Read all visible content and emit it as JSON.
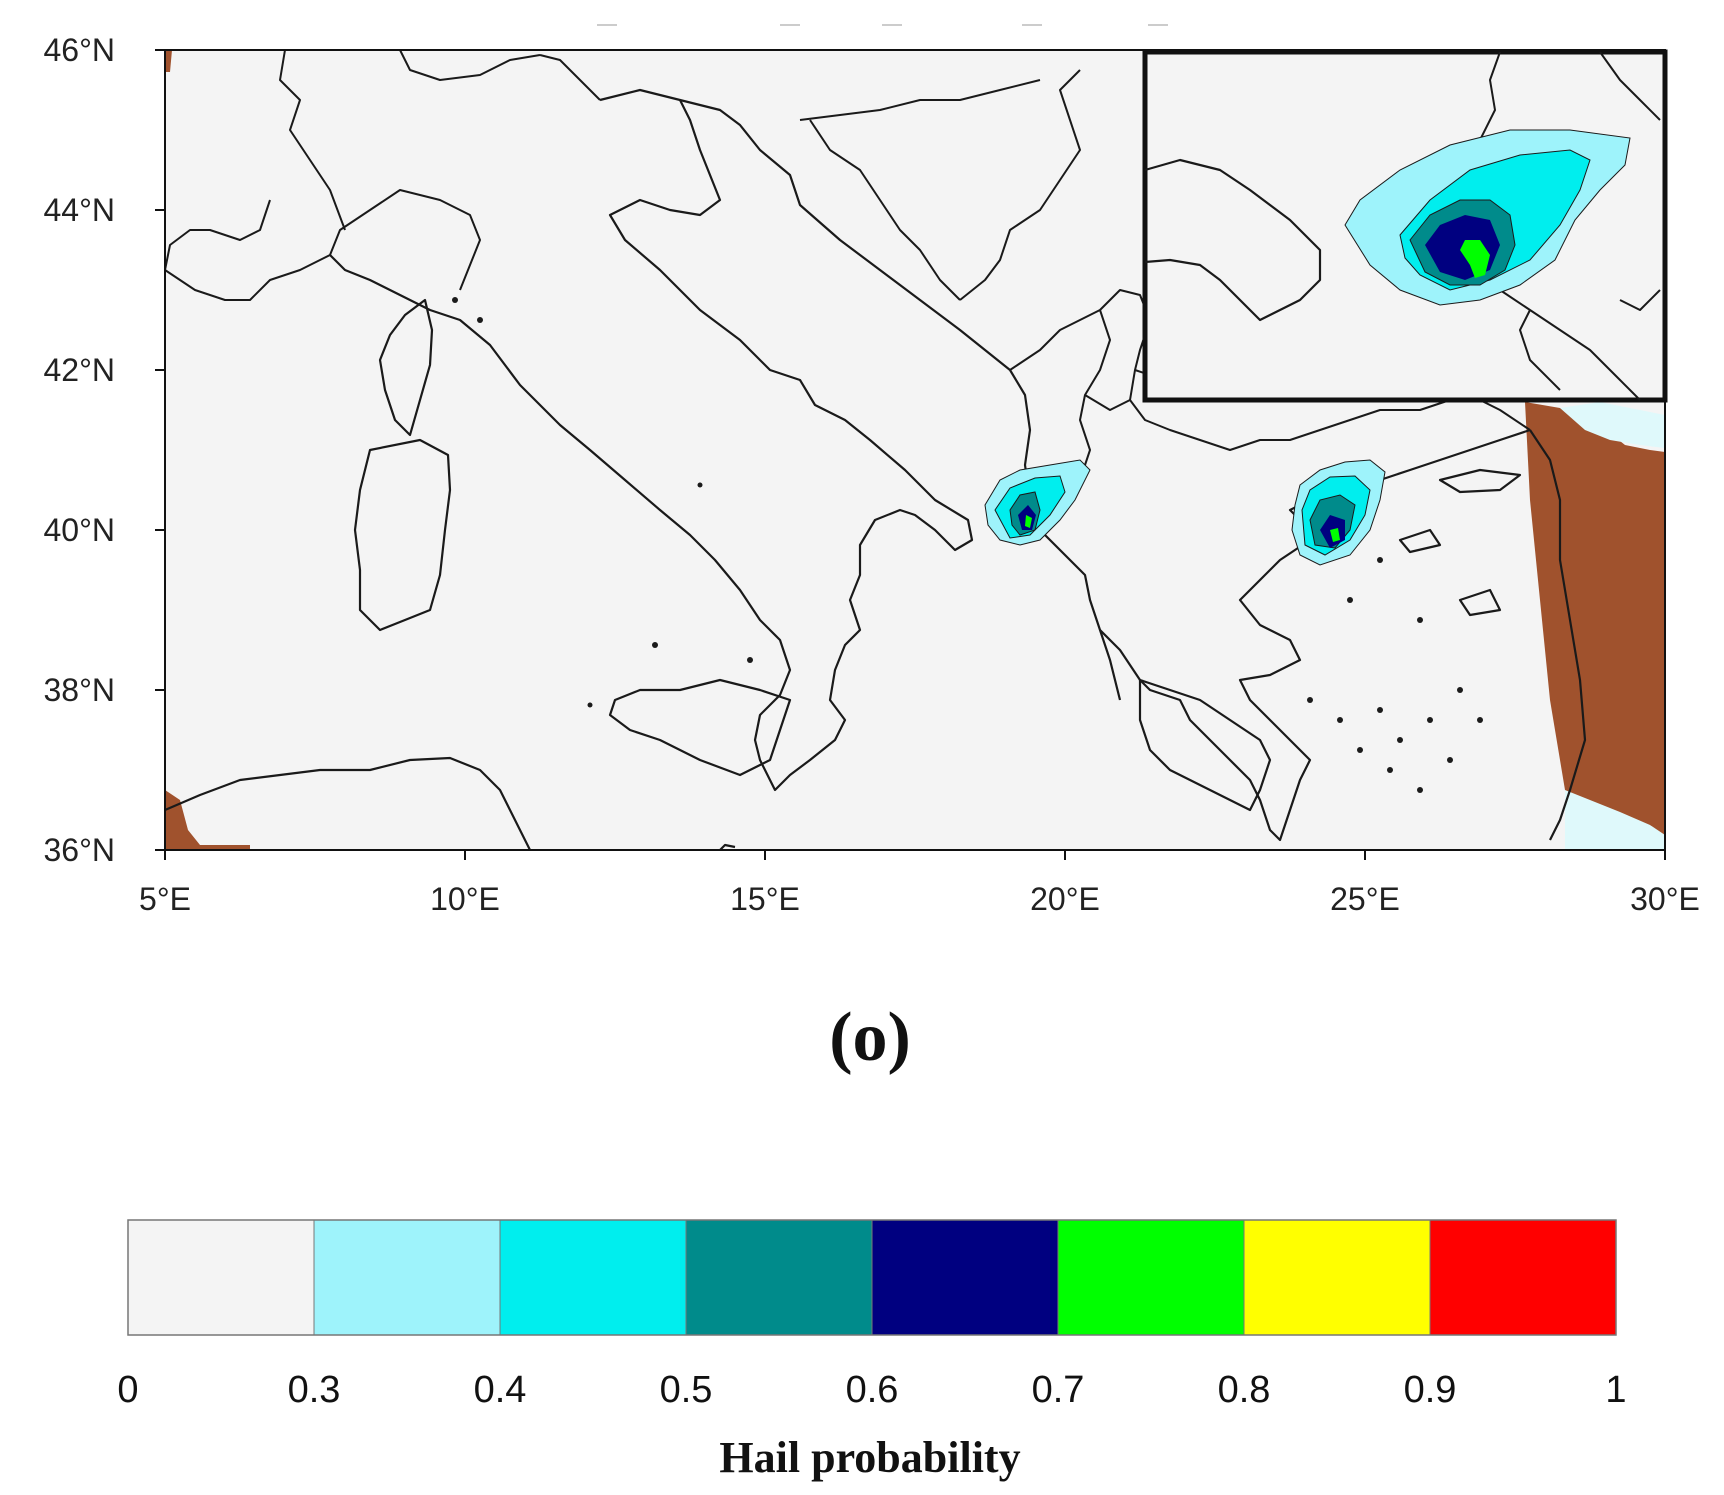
{
  "map": {
    "lon_ticks": [
      "5°E",
      "10°E",
      "15°E",
      "20°E",
      "25°E",
      "30°E"
    ],
    "lat_ticks": [
      "46°N",
      "44°N",
      "42°N",
      "40°N",
      "38°N",
      "36°N"
    ],
    "extent": {
      "lon": [
        5,
        30
      ],
      "lat": [
        36,
        46
      ]
    },
    "ocean_color": "#f4f4f4",
    "land_mask_color": "#a0522d",
    "icons": [
      "coastline",
      "country-borders",
      "inset-zoom-box"
    ]
  },
  "panel_label": "(o)",
  "colorbar": {
    "title": "Hail probability",
    "tick_labels": [
      "0",
      "0.3",
      "0.4",
      "0.5",
      "0.6",
      "0.7",
      "0.8",
      "0.9",
      "1"
    ],
    "bins": [
      {
        "range": [
          0,
          0.3
        ],
        "color": "#f4f4f4"
      },
      {
        "range": [
          0.3,
          0.4
        ],
        "color": "#9ef3fb"
      },
      {
        "range": [
          0.4,
          0.5
        ],
        "color": "#00eeee"
      },
      {
        "range": [
          0.5,
          0.6
        ],
        "color": "#008b8b"
      },
      {
        "range": [
          0.6,
          0.7
        ],
        "color": "#000080"
      },
      {
        "range": [
          0.7,
          0.8
        ],
        "color": "#00ff00"
      },
      {
        "range": [
          0.8,
          0.9
        ],
        "color": "#ffff00"
      },
      {
        "range": [
          0.9,
          1.0
        ],
        "color": "#ff0000"
      }
    ]
  }
}
